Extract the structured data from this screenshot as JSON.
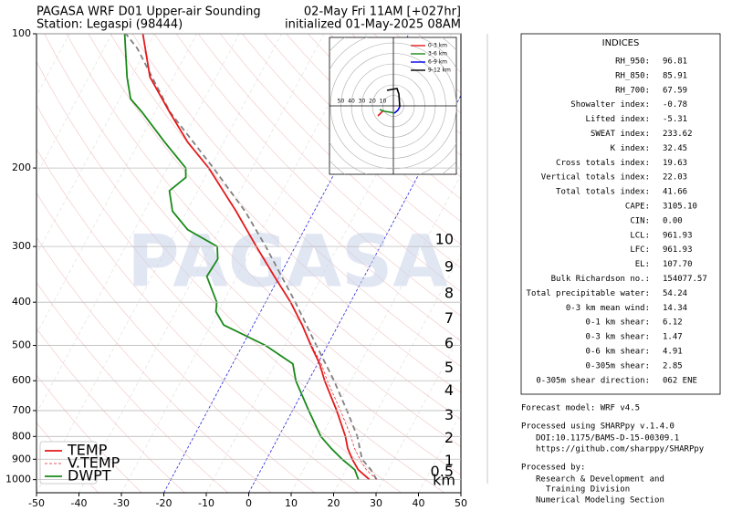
{
  "chart_data": {
    "type": "skewt",
    "title": "PAGASA WRF D01 Upper-air Sounding",
    "subtitle": "Station: Legaspi (98444)",
    "valid_time": "02-May Fri 11AM [+027hr]",
    "init_time": "initialized 01-May-2025 08AM",
    "watermark": "PAGASA",
    "xlim": [
      -50,
      50
    ],
    "xticks": [
      -50,
      -40,
      -30,
      -20,
      -10,
      0,
      10,
      20,
      30,
      40,
      50
    ],
    "ylim": [
      1070,
      100
    ],
    "yticks": [
      100,
      200,
      300,
      400,
      500,
      600,
      700,
      800,
      900,
      1000
    ],
    "log_y": true,
    "grid": true,
    "legend": "lower left",
    "series": [
      {
        "name": "TEMP",
        "color": "#e41a1c",
        "dash": false,
        "pressure": [
          1000,
          950,
          900,
          850,
          800,
          700,
          600,
          550,
          500,
          450,
          400,
          350,
          300,
          250,
          200,
          175,
          150,
          125,
          100
        ],
        "values": [
          26.8,
          22.9,
          20.2,
          17.7,
          15.7,
          10.4,
          3.8,
          0.5,
          -3.9,
          -8.5,
          -14.1,
          -21.2,
          -29.2,
          -38.4,
          -50.3,
          -58.5,
          -66.5,
          -75.6,
          -82.7
        ]
      },
      {
        "name": "V.TEMP",
        "color": "#e41a1c",
        "dash": true,
        "pressure": [
          1000,
          950,
          900,
          850,
          800,
          700,
          600,
          550,
          500,
          450,
          400
        ],
        "values": [
          28.5,
          24.8,
          22.0,
          19.3,
          17.0,
          11.3,
          4.4,
          0.9,
          -3.7,
          -8.4,
          -14.0
        ]
      },
      {
        "name": "DWPT",
        "color": "#1a8a1a",
        "dash": false,
        "pressure": [
          1000,
          950,
          900,
          850,
          800,
          700,
          600,
          550,
          500,
          450,
          420,
          400,
          350,
          320,
          300,
          275,
          250,
          225,
          210,
          200,
          175,
          150,
          140,
          125,
          100
        ],
        "values": [
          24.2,
          22.1,
          17.8,
          13.8,
          9.9,
          3.8,
          -3.0,
          -5.8,
          -14.6,
          -27.0,
          -30.5,
          -31.5,
          -37.1,
          -36.7,
          -38.4,
          -47.5,
          -53.4,
          -56.7,
          -54.5,
          -55.7,
          -63.9,
          -73.0,
          -77.4,
          -81.0,
          -87.0
        ]
      }
    ],
    "parcel": {
      "color": "#808080",
      "pressure": [
        1000,
        950,
        900,
        800,
        700,
        600,
        500,
        400,
        300,
        250,
        200,
        150,
        108,
        100
      ],
      "values": [
        28.5,
        25.9,
        22.5,
        18.5,
        12.8,
        6.0,
        -2.6,
        -13.0,
        -27.0,
        -36.3,
        -49.2,
        -66.4,
        -82.1,
        -86.7
      ]
    },
    "heights": {
      "unit": "km",
      "values": [
        10,
        9,
        8,
        7,
        6,
        5,
        4,
        3,
        2,
        1,
        0.5
      ],
      "pressure": [
        290,
        334,
        383,
        436,
        496,
        563,
        633,
        719,
        809,
        910,
        963
      ]
    },
    "hodograph": {
      "rings": [
        10,
        20,
        30,
        40,
        50
      ],
      "segments": [
        {
          "name": "0-3 km",
          "color": "#e41a1c",
          "u": [
            -9.6,
            -13.0,
            -14.8
          ],
          "v": [
            -4.3,
            -7.8,
            -9.6
          ]
        },
        {
          "name": "3-6 km",
          "color": "#1a8a1a",
          "u": [
            -13.0,
            -8.7,
            -2.6,
            0.9
          ],
          "v": [
            -3.5,
            -5.2,
            -6.1,
            -7.0
          ]
        },
        {
          "name": "6-9 km",
          "color": "#0000ee",
          "u": [
            0.9,
            4.3,
            6.1
          ],
          "v": [
            -7.0,
            -4.3,
            -0.9
          ]
        },
        {
          "name": "9-12 km",
          "color": "#000000",
          "u": [
            6.1,
            5.2,
            3.5,
            -6.1
          ],
          "v": [
            -0.9,
            11.3,
            16.5,
            14.8
          ]
        }
      ]
    }
  },
  "indices": {
    "title": "INDICES",
    "rows": [
      [
        "RH_950:",
        "96.81"
      ],
      [
        "RH_850:",
        "85.91"
      ],
      [
        "RH_700:",
        "67.59"
      ],
      [
        "Showalter index:",
        "-0.78"
      ],
      [
        "Lifted index:",
        "-5.31"
      ],
      [
        "SWEAT index:",
        "233.62"
      ],
      [
        "K index:",
        "32.45"
      ],
      [
        "Cross totals index:",
        "19.63"
      ],
      [
        "Vertical totals index:",
        "22.03"
      ],
      [
        "Total totals index:",
        "41.66"
      ],
      [
        "CAPE:",
        "3105.10"
      ],
      [
        "CIN:",
        "0.00"
      ],
      [
        "LCL:",
        "961.93"
      ],
      [
        "LFC:",
        "961.93"
      ],
      [
        "EL:",
        "107.70"
      ],
      [
        "Bulk Richardson no.:",
        "154077.57"
      ],
      [
        "Total precipitable water:",
        "54.24"
      ],
      [
        "0-3 km mean wind:",
        "14.34"
      ],
      [
        "0-1 km shear:",
        "6.12"
      ],
      [
        "0-3 km shear:",
        "1.47"
      ],
      [
        "0-6 km shear:",
        "4.91"
      ],
      [
        "0-305m shear:",
        "2.85"
      ],
      [
        "0-305m shear direction:",
        "062 ENE"
      ]
    ]
  },
  "footer": {
    "model": "Forecast model: WRF v4.5",
    "processed": "Processed using SHARPpy v.1.4.0",
    "doi": "DOI:10.1175/BAMS-D-15-00309.1",
    "url": "https://github.com/sharppy/SHARPpy",
    "by": "Processed by:",
    "org1": "Research & Development and",
    "org2": "Training Division",
    "org3": "Numerical Modeling Section"
  }
}
